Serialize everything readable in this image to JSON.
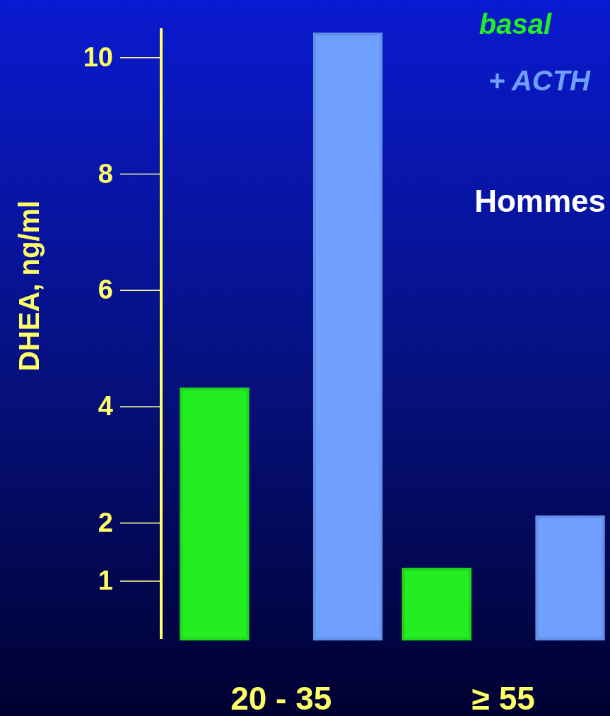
{
  "chart_data": {
    "type": "bar",
    "ylabel": "DHEA, ng/ml",
    "categories": [
      "20 - 35",
      "≥ 55"
    ],
    "series": [
      {
        "name": "basal",
        "color": "#22ee22",
        "values": [
          4.3,
          1.2
        ]
      },
      {
        "name": "+ ACTH",
        "color": "#6fa0ff",
        "values": [
          10.4,
          2.1
        ]
      }
    ],
    "ylim": [
      0,
      10.5
    ],
    "yticks": [
      1,
      2,
      4,
      6,
      8,
      10
    ],
    "legend": "top right",
    "annotations": [
      "Hommes"
    ]
  }
}
